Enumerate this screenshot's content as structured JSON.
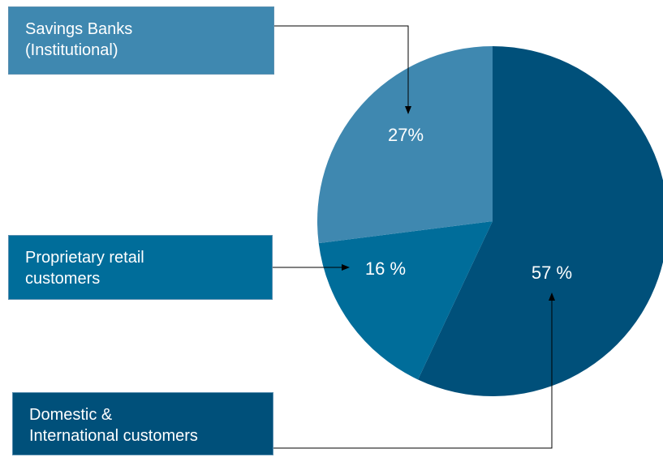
{
  "chart_data": {
    "type": "pie",
    "categories": [
      "Domestic &\nInternational customers",
      "Proprietary retail\ncustomers",
      "Savings Banks\n(Institutional)"
    ],
    "values": [
      57,
      16,
      27
    ],
    "value_labels": [
      "57 %",
      "16 %",
      "27%"
    ],
    "colors": [
      "#00507a",
      "#006d9a",
      "#3f88b0"
    ]
  }
}
